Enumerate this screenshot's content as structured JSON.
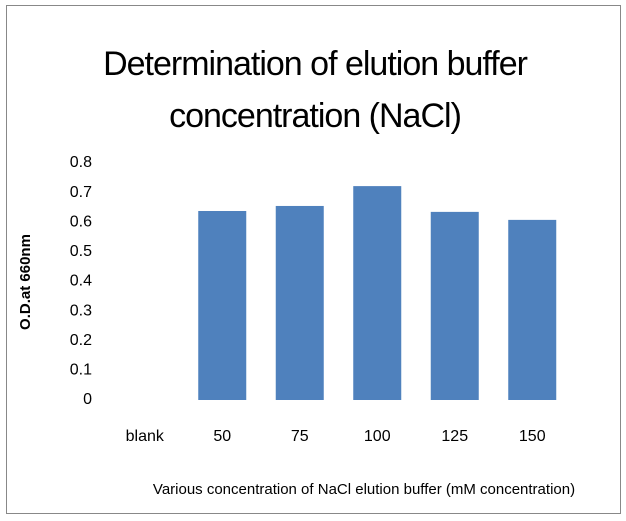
{
  "chart_data": {
    "type": "bar",
    "title": "Determination of elution buffer concentration (NaCl)",
    "x_label": "Various concentration of NaCl elution buffer (mM concentration)",
    "y_label": "O.D.at 660nm",
    "categories": [
      "blank",
      "50",
      "75",
      "100",
      "125",
      "150"
    ],
    "values": [
      0,
      0.638,
      0.655,
      0.722,
      0.635,
      0.608
    ],
    "color": "#4f81bd",
    "ylim": [
      0,
      0.8
    ],
    "yticks": [
      0,
      0.1,
      0.2,
      0.3,
      0.4,
      0.5,
      0.6,
      0.7,
      0.8
    ],
    "grid": false
  }
}
